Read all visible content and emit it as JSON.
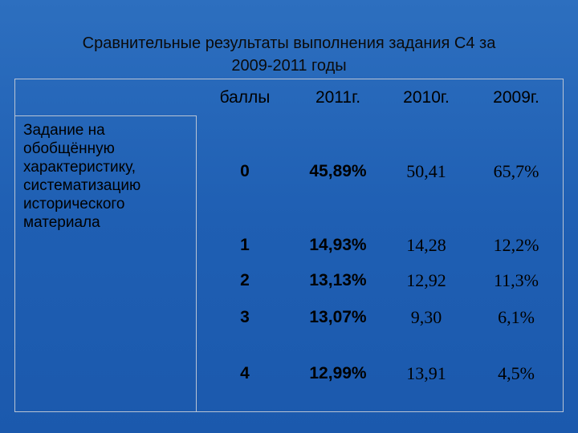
{
  "title": {
    "line1": "Сравнительные результаты выполнения задания С4  за",
    "line2": "2009-2011 годы"
  },
  "table": {
    "headers": [
      "баллы",
      "2011г.",
      "2010г.",
      "2009г."
    ],
    "task_label": "Задание на обобщённую характеристику, систематизацию исторического материала",
    "rows": [
      {
        "score": "0",
        "y2011": "45,89%",
        "y2010": "50,41",
        "y2009": "65,7%"
      },
      {
        "score": "1",
        "y2011": "14,93%",
        "y2010": "14,28",
        "y2009": "12,2%"
      },
      {
        "score": "2",
        "y2011": "13,13%",
        "y2010": "12,92",
        "y2009": "11,3%"
      },
      {
        "score": "3",
        "y2011": "13,07%",
        "y2010": "9,30",
        "y2009": "6,1%"
      },
      {
        "score": "4",
        "y2011": "12,99%",
        "y2010": "13,91",
        "y2009": "4,5%"
      }
    ]
  }
}
